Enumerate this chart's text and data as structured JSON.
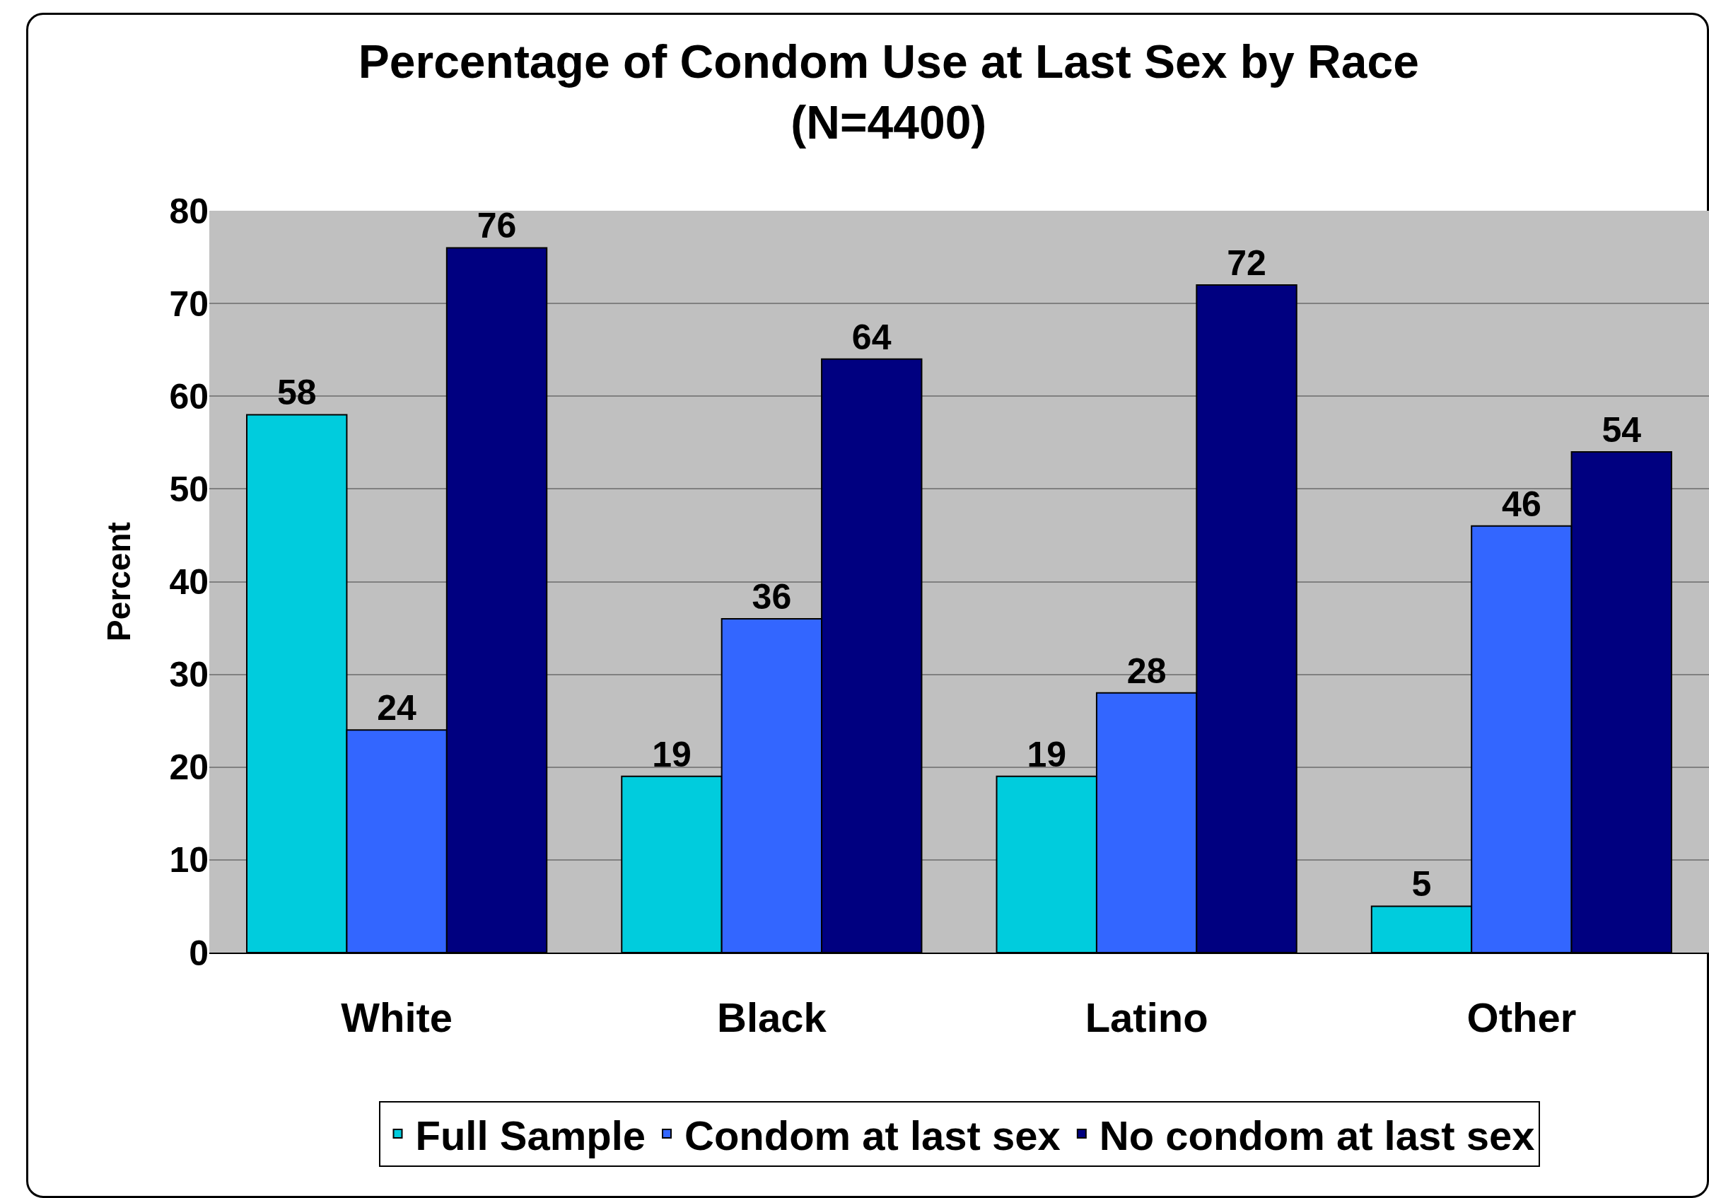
{
  "chart_data": {
    "type": "bar",
    "title": "Percentage of Condom Use at Last Sex by Race\n(N=4400)",
    "ylabel": "Percent",
    "categories": [
      "White",
      "Black",
      "Latino",
      "Other"
    ],
    "series": [
      {
        "name": "Full Sample",
        "color": "#00ccdd",
        "values": [
          58,
          19,
          19,
          5
        ]
      },
      {
        "name": "Condom at last sex",
        "color": "#3366ff",
        "values": [
          24,
          36,
          28,
          46
        ]
      },
      {
        "name": "No condom at last sex",
        "color": "#000080",
        "values": [
          76,
          64,
          72,
          54
        ]
      }
    ],
    "ylim": [
      0,
      80
    ],
    "yticks": [
      0,
      10,
      20,
      30,
      40,
      50,
      60,
      70,
      80
    ],
    "grid": "y",
    "legend": "bottom",
    "data_labels": true
  }
}
